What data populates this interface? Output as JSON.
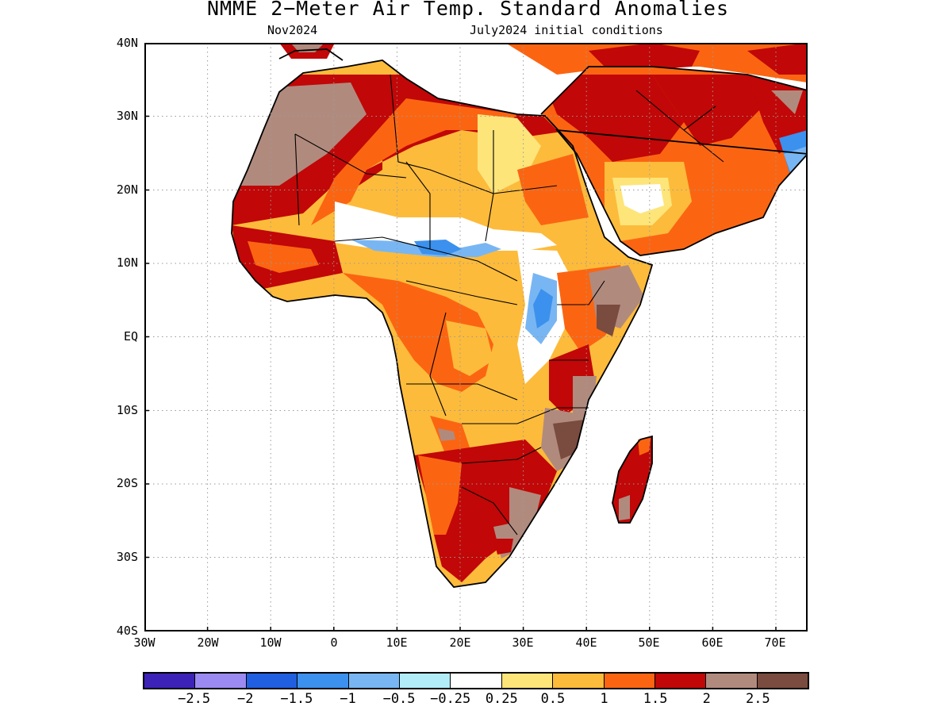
{
  "title": "NMME 2−Meter Air Temp. Standard Anomalies",
  "subtitle_left": "Nov2024",
  "subtitle_right": "July2024 initial conditions",
  "lat_ticks": [
    "40N",
    "30N",
    "20N",
    "10N",
    "EQ",
    "10S",
    "20S",
    "30S",
    "40S"
  ],
  "lon_ticks": [
    "30W",
    "20W",
    "10W",
    "0",
    "10E",
    "20E",
    "30E",
    "40E",
    "50E",
    "60E",
    "70E"
  ],
  "colorbar": {
    "colors": [
      "#3d22b8",
      "#9b8af2",
      "#1f5fe0",
      "#3b91ed",
      "#78b6f3",
      "#b2ecf8",
      "#ffffff",
      "#fde57a",
      "#fdbb3b",
      "#fb6512",
      "#c10707",
      "#b18a7e",
      "#7a4b3f"
    ],
    "labels": [
      "−2.5",
      "−2",
      "−1.5",
      "−1",
      "−0.5",
      "−0.25",
      "0.25",
      "0.5",
      "1",
      "1.5",
      "2",
      "2.5"
    ]
  },
  "map_data": {
    "region": "Africa and Arabian Peninsula",
    "lon_range": [
      -30,
      75
    ],
    "lat_range": [
      -40,
      40
    ],
    "variable": "2-meter air temperature standard anomaly",
    "grid_lines": true
  }
}
